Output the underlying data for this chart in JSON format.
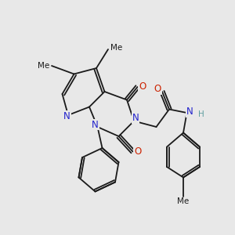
{
  "bg_color": "#e8e8e8",
  "bond_color": "#1a1a1a",
  "bond_width": 1.3,
  "atom_colors": {
    "N": "#2222cc",
    "O": "#cc2200",
    "H": "#5f9ea0",
    "C": "#1a1a1a"
  },
  "font_size_atom": 8.5,
  "font_size_small": 7.5,
  "xlim": [
    0,
    10
  ],
  "ylim": [
    0,
    10
  ]
}
